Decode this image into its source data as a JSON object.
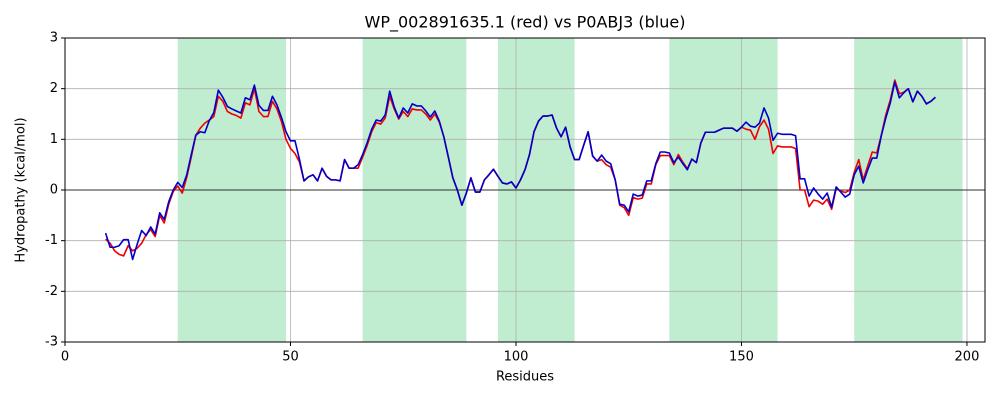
{
  "chart_data": {
    "type": "line",
    "title": "WP_002891635.1 (red) vs P0ABJ3 (blue)",
    "xlabel": "Residues",
    "ylabel": "Hydropathy (kcal/mol)",
    "xlim": [
      0,
      204
    ],
    "ylim": [
      -3,
      3
    ],
    "xticks": [
      0,
      50,
      100,
      150,
      200
    ],
    "yticks": [
      -3,
      -2,
      -1,
      0,
      1,
      2,
      3
    ],
    "grid": true,
    "hline": 0,
    "shaded_regions": [
      [
        25,
        49
      ],
      [
        66,
        89
      ],
      [
        96,
        113
      ],
      [
        134,
        158
      ],
      [
        175,
        199
      ]
    ],
    "shade_color": "#c0ecd0",
    "x": [
      9,
      10,
      11,
      12,
      13,
      14,
      15,
      16,
      17,
      18,
      19,
      20,
      21,
      22,
      23,
      24,
      25,
      26,
      27,
      28,
      29,
      30,
      31,
      32,
      33,
      34,
      35,
      36,
      37,
      38,
      39,
      40,
      41,
      42,
      43,
      44,
      45,
      46,
      47,
      48,
      49,
      50,
      51,
      52,
      53,
      54,
      55,
      56,
      57,
      58,
      59,
      60,
      61,
      62,
      63,
      64,
      65,
      66,
      67,
      68,
      69,
      70,
      71,
      72,
      73,
      74,
      75,
      76,
      77,
      78,
      79,
      80,
      81,
      82,
      83,
      84,
      85,
      86,
      87,
      88,
      89,
      90,
      91,
      92,
      93,
      94,
      95,
      96,
      97,
      98,
      99,
      100,
      101,
      102,
      103,
      104,
      105,
      106,
      107,
      108,
      109,
      110,
      111,
      112,
      113,
      114,
      115,
      116,
      117,
      118,
      119,
      120,
      121,
      122,
      123,
      124,
      125,
      126,
      127,
      128,
      129,
      130,
      131,
      132,
      133,
      134,
      135,
      136,
      137,
      138,
      139,
      140,
      141,
      142,
      143,
      144,
      145,
      146,
      147,
      148,
      149,
      150,
      151,
      152,
      153,
      154,
      155,
      156,
      157,
      158,
      159,
      160,
      161,
      162,
      163,
      164,
      165,
      166,
      167,
      168,
      169,
      170,
      171,
      172,
      173,
      174,
      175,
      176,
      177,
      178,
      179,
      180,
      181,
      182,
      183,
      184,
      185,
      186,
      187,
      188,
      189,
      190,
      191,
      192,
      193
    ],
    "series": [
      {
        "name": "WP_002891635.1",
        "color": "#ee0000",
        "values": [
          -0.97,
          -1.05,
          -1.2,
          -1.27,
          -1.3,
          -1.1,
          -1.2,
          -1.15,
          -1.05,
          -0.88,
          -0.78,
          -0.92,
          -0.5,
          -0.65,
          -0.28,
          -0.03,
          0.08,
          -0.06,
          0.25,
          0.65,
          1.08,
          1.22,
          1.32,
          1.38,
          1.45,
          1.85,
          1.75,
          1.55,
          1.5,
          1.47,
          1.42,
          1.72,
          1.68,
          2.0,
          1.55,
          1.45,
          1.45,
          1.75,
          1.6,
          1.35,
          1.0,
          0.82,
          0.72,
          0.55,
          0.18,
          0.26,
          0.3,
          0.18,
          0.43,
          0.27,
          0.2,
          0.2,
          0.18,
          0.6,
          0.43,
          0.43,
          0.43,
          0.65,
          0.88,
          1.15,
          1.33,
          1.3,
          1.42,
          1.85,
          1.6,
          1.4,
          1.55,
          1.45,
          1.6,
          1.58,
          1.58,
          1.5,
          1.38,
          1.5,
          1.34,
          1.05,
          0.65,
          0.24,
          0.0,
          -0.3,
          -0.06,
          0.24,
          -0.04,
          -0.04,
          0.2,
          0.3,
          0.41,
          0.27,
          0.14,
          0.12,
          0.16,
          0.04,
          0.2,
          0.4,
          0.7,
          1.15,
          1.36,
          1.46,
          1.46,
          1.48,
          1.22,
          1.05,
          1.24,
          0.85,
          0.6,
          0.6,
          0.88,
          1.15,
          0.67,
          0.57,
          0.6,
          0.5,
          0.45,
          0.2,
          -0.3,
          -0.35,
          -0.5,
          -0.15,
          -0.18,
          -0.16,
          0.12,
          0.12,
          0.5,
          0.68,
          0.68,
          0.68,
          0.5,
          0.7,
          0.55,
          0.42,
          0.61,
          0.54,
          0.93,
          1.14,
          1.14,
          1.14,
          1.18,
          1.22,
          1.22,
          1.22,
          1.16,
          1.24,
          1.2,
          1.18,
          1.0,
          1.25,
          1.38,
          1.2,
          0.72,
          0.87,
          0.85,
          0.85,
          0.85,
          0.82,
          0.0,
          0.0,
          -0.33,
          -0.2,
          -0.22,
          -0.28,
          -0.18,
          -0.38,
          0.03,
          -0.02,
          -0.05,
          0.0,
          0.35,
          0.6,
          0.2,
          0.48,
          0.75,
          0.73,
          1.08,
          1.48,
          1.78,
          2.17,
          1.9,
          1.93,
          2.0,
          1.74,
          1.95,
          1.85,
          1.7,
          1.75,
          1.83
        ]
      },
      {
        "name": "P0ABJ3",
        "color": "#0000cc",
        "values": [
          -0.85,
          -1.13,
          -1.13,
          -1.1,
          -0.98,
          -0.98,
          -1.37,
          -1.07,
          -0.8,
          -0.9,
          -0.73,
          -0.87,
          -0.45,
          -0.58,
          -0.23,
          0.0,
          0.15,
          0.05,
          0.3,
          0.7,
          1.08,
          1.15,
          1.13,
          1.37,
          1.53,
          1.97,
          1.83,
          1.65,
          1.6,
          1.56,
          1.52,
          1.82,
          1.78,
          2.07,
          1.67,
          1.57,
          1.57,
          1.85,
          1.68,
          1.43,
          1.15,
          0.97,
          0.97,
          0.6,
          0.18,
          0.26,
          0.3,
          0.18,
          0.43,
          0.27,
          0.2,
          0.2,
          0.18,
          0.6,
          0.43,
          0.43,
          0.5,
          0.7,
          0.93,
          1.2,
          1.38,
          1.36,
          1.48,
          1.95,
          1.64,
          1.42,
          1.62,
          1.52,
          1.7,
          1.66,
          1.66,
          1.56,
          1.44,
          1.56,
          1.36,
          1.05,
          0.65,
          0.24,
          0.0,
          -0.3,
          -0.06,
          0.24,
          -0.04,
          -0.04,
          0.2,
          0.3,
          0.41,
          0.27,
          0.14,
          0.12,
          0.16,
          0.04,
          0.2,
          0.4,
          0.7,
          1.15,
          1.36,
          1.46,
          1.46,
          1.48,
          1.22,
          1.05,
          1.24,
          0.85,
          0.6,
          0.6,
          0.88,
          1.15,
          0.67,
          0.57,
          0.69,
          0.57,
          0.52,
          0.2,
          -0.28,
          -0.3,
          -0.43,
          -0.08,
          -0.12,
          -0.1,
          0.18,
          0.18,
          0.52,
          0.75,
          0.75,
          0.73,
          0.54,
          0.65,
          0.52,
          0.4,
          0.61,
          0.54,
          0.93,
          1.14,
          1.14,
          1.14,
          1.18,
          1.22,
          1.22,
          1.22,
          1.16,
          1.24,
          1.34,
          1.26,
          1.24,
          1.32,
          1.62,
          1.42,
          0.98,
          1.12,
          1.1,
          1.1,
          1.1,
          1.07,
          0.22,
          0.22,
          -0.12,
          0.04,
          -0.08,
          -0.18,
          -0.06,
          -0.34,
          0.06,
          -0.04,
          -0.14,
          -0.08,
          0.3,
          0.47,
          0.14,
          0.4,
          0.63,
          0.63,
          1.07,
          1.42,
          1.72,
          2.13,
          1.82,
          1.92,
          2.0,
          1.74,
          1.95,
          1.85,
          1.7,
          1.75,
          1.83
        ]
      }
    ]
  }
}
